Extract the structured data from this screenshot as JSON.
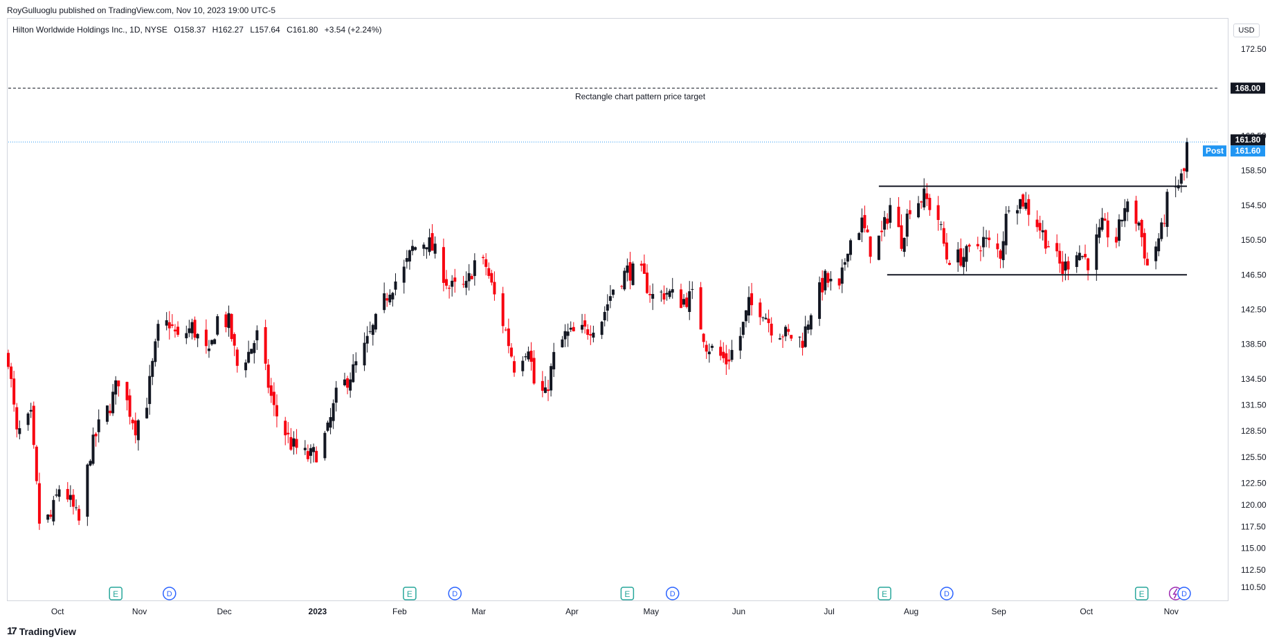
{
  "header": {
    "publisher_line": "RoyGulluoglu published on TradingView.com, Nov 10, 2023 19:00 UTC-5",
    "symbol": "Hilton Worldwide Holdings Inc., 1D, NYSE",
    "open": "O158.37",
    "high": "H162.27",
    "low": "L157.64",
    "close": "C161.80",
    "change": "+3.54 (+2.24%)",
    "currency": "USD"
  },
  "footer": {
    "brand": "TradingView",
    "brand_mark": "17"
  },
  "colors": {
    "up": "#131722",
    "down": "#f7000f",
    "grid": "#ffffff",
    "axis_text": "#131722",
    "post": "#2196f3",
    "last": "#131722",
    "event_earn": "#26a69a",
    "event_div": "#2962ff",
    "event_split": "#9c27b0"
  },
  "chart_data": {
    "type": "candlestick",
    "title": "Hilton Worldwide Holdings Inc., 1D, NYSE",
    "y_axis": {
      "ticks": [
        "172.50",
        "162.50",
        "158.50",
        "154.50",
        "150.50",
        "146.50",
        "142.50",
        "138.50",
        "134.50",
        "131.50",
        "128.50",
        "125.50",
        "122.50",
        "120.00",
        "117.50",
        "115.00",
        "112.50",
        "110.50"
      ],
      "range": [
        109,
        176
      ]
    },
    "x_axis": {
      "labels": [
        "Oct",
        "Nov",
        "Dec",
        "2023",
        "Feb",
        "Mar",
        "Apr",
        "May",
        "Jun",
        "Jul",
        "Aug",
        "Sep",
        "Oct",
        "Nov"
      ],
      "start": "2022-09-19",
      "end": "2023-11-10"
    },
    "price_tags": {
      "target": "168.00",
      "last": "161.80",
      "post_label": "Post",
      "post": "161.60"
    },
    "annotations": {
      "target_label": "Rectangle chart pattern price target",
      "target_price": 168.0,
      "rectangle_top": 156.7,
      "rectangle_bottom": 146.5,
      "rectangle_start": "2023-07-24",
      "rectangle_end": "2023-11-10"
    },
    "events": [
      {
        "type": "E",
        "date": "2022-10-27"
      },
      {
        "type": "D",
        "date": "2022-11-15"
      },
      {
        "type": "E",
        "date": "2023-02-08"
      },
      {
        "type": "D",
        "date": "2023-02-24"
      },
      {
        "type": "E",
        "date": "2023-04-26"
      },
      {
        "type": "D",
        "date": "2023-05-12"
      },
      {
        "type": "E",
        "date": "2023-07-26"
      },
      {
        "type": "D",
        "date": "2023-08-17"
      },
      {
        "type": "E",
        "date": "2023-10-25"
      },
      {
        "type": "S",
        "date": "2023-11-06"
      },
      {
        "type": "D",
        "date": "2023-11-09"
      }
    ],
    "anchors": [
      [
        "2022-09-19",
        137.0
      ],
      [
        "2022-09-22",
        128.0
      ],
      [
        "2022-09-27",
        130.0
      ],
      [
        "2022-09-30",
        118.0
      ],
      [
        "2022-10-04",
        118.5
      ],
      [
        "2022-10-07",
        122.0
      ],
      [
        "2022-10-10",
        121.0
      ],
      [
        "2022-10-14",
        118.0
      ],
      [
        "2022-10-18",
        126.0
      ],
      [
        "2022-10-21",
        129.0
      ],
      [
        "2022-10-25",
        131.5
      ],
      [
        "2022-10-28",
        134.5
      ],
      [
        "2022-11-03",
        129.0
      ],
      [
        "2022-11-07",
        132.0
      ],
      [
        "2022-11-11",
        140.0
      ],
      [
        "2022-11-15",
        141.0
      ],
      [
        "2022-11-18",
        139.0
      ],
      [
        "2022-11-23",
        140.5
      ],
      [
        "2022-11-29",
        137.0
      ],
      [
        "2022-12-02",
        141.5
      ],
      [
        "2022-12-06",
        141.0
      ],
      [
        "2022-12-09",
        136.0
      ],
      [
        "2022-12-13",
        137.5
      ],
      [
        "2022-12-16",
        139.5
      ],
      [
        "2022-12-22",
        131.0
      ],
      [
        "2022-12-28",
        127.0
      ],
      [
        "2023-01-03",
        125.5
      ],
      [
        "2023-01-06",
        126.0
      ],
      [
        "2023-01-10",
        128.5
      ],
      [
        "2023-01-13",
        132.5
      ],
      [
        "2023-01-19",
        135.5
      ],
      [
        "2023-01-23",
        138.0
      ],
      [
        "2023-01-27",
        141.0
      ],
      [
        "2023-02-01",
        145.0
      ],
      [
        "2023-02-06",
        147.0
      ],
      [
        "2023-02-09",
        149.5
      ],
      [
        "2023-02-14",
        150.5
      ],
      [
        "2023-02-17",
        149.0
      ],
      [
        "2023-02-22",
        145.0
      ],
      [
        "2023-02-28",
        145.0
      ],
      [
        "2023-03-03",
        148.0
      ],
      [
        "2023-03-07",
        147.5
      ],
      [
        "2023-03-10",
        144.0
      ],
      [
        "2023-03-14",
        140.0
      ],
      [
        "2023-03-17",
        136.0
      ],
      [
        "2023-03-22",
        138.5
      ],
      [
        "2023-03-24",
        134.0
      ],
      [
        "2023-03-28",
        132.5
      ],
      [
        "2023-03-31",
        137.0
      ],
      [
        "2023-04-04",
        139.5
      ],
      [
        "2023-04-11",
        140.0
      ],
      [
        "2023-04-17",
        141.5
      ],
      [
        "2023-04-21",
        145.0
      ],
      [
        "2023-04-26",
        147.0
      ],
      [
        "2023-05-01",
        146.5
      ],
      [
        "2023-05-05",
        144.0
      ],
      [
        "2023-05-10",
        144.5
      ],
      [
        "2023-05-15",
        143.5
      ],
      [
        "2023-05-19",
        144.0
      ],
      [
        "2023-05-24",
        138.5
      ],
      [
        "2023-05-31",
        136.5
      ],
      [
        "2023-06-05",
        139.5
      ],
      [
        "2023-06-08",
        143.0
      ],
      [
        "2023-06-13",
        142.5
      ],
      [
        "2023-06-16",
        140.5
      ],
      [
        "2023-06-22",
        139.5
      ],
      [
        "2023-06-27",
        139.0
      ],
      [
        "2023-06-30",
        142.5
      ],
      [
        "2023-07-05",
        146.0
      ],
      [
        "2023-07-10",
        144.5
      ],
      [
        "2023-07-13",
        150.0
      ],
      [
        "2023-07-18",
        152.5
      ],
      [
        "2023-07-21",
        149.5
      ],
      [
        "2023-07-25",
        151.0
      ],
      [
        "2023-07-28",
        154.5
      ],
      [
        "2023-08-01",
        150.5
      ],
      [
        "2023-08-04",
        154.5
      ],
      [
        "2023-08-09",
        155.5
      ],
      [
        "2023-08-14",
        153.0
      ],
      [
        "2023-08-17",
        148.5
      ],
      [
        "2023-08-22",
        148.5
      ],
      [
        "2023-08-25",
        149.0
      ],
      [
        "2023-08-30",
        150.5
      ],
      [
        "2023-09-05",
        149.0
      ],
      [
        "2023-09-08",
        155.0
      ],
      [
        "2023-09-13",
        155.0
      ],
      [
        "2023-09-18",
        152.5
      ],
      [
        "2023-09-22",
        150.0
      ],
      [
        "2023-09-27",
        147.0
      ],
      [
        "2023-10-02",
        149.5
      ],
      [
        "2023-10-06",
        148.0
      ],
      [
        "2023-10-11",
        152.0
      ],
      [
        "2023-10-16",
        150.5
      ],
      [
        "2023-10-19",
        154.5
      ],
      [
        "2023-10-24",
        152.5
      ],
      [
        "2023-10-27",
        147.5
      ],
      [
        "2023-11-01",
        151.5
      ],
      [
        "2023-11-03",
        155.0
      ],
      [
        "2023-11-07",
        157.0
      ],
      [
        "2023-11-09",
        158.3
      ],
      [
        "2023-11-10",
        161.8
      ]
    ]
  }
}
